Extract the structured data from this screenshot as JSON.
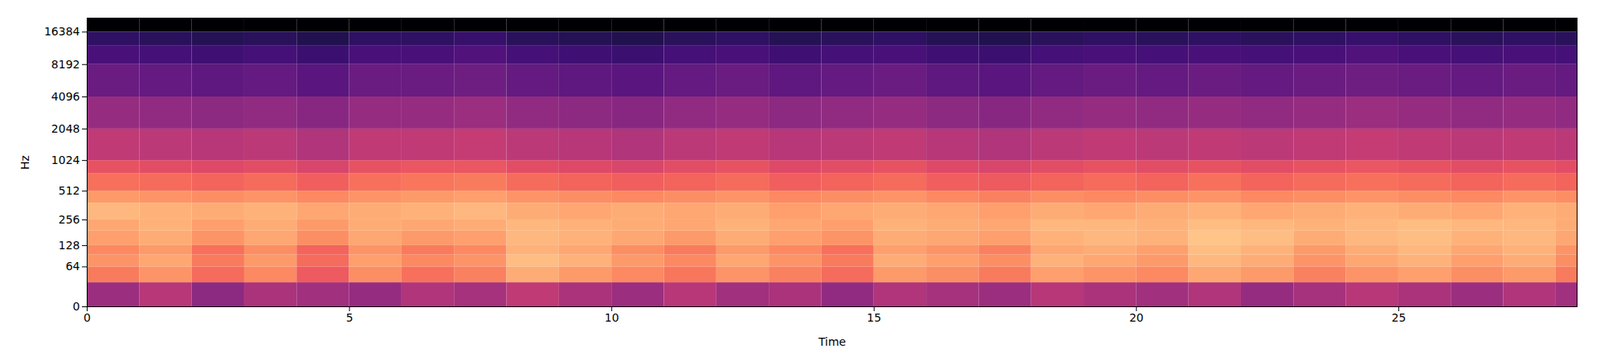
{
  "chart_data": {
    "type": "heatmap",
    "x_label": "Time",
    "y_label": "Hz",
    "xlim": [
      0,
      28.4
    ],
    "xticks": [
      0,
      5,
      10,
      15,
      20,
      25
    ],
    "ylim": [
      0,
      22050
    ],
    "yticks": [
      0,
      64,
      128,
      256,
      512,
      1024,
      2048,
      4096,
      8192,
      16384
    ],
    "log": "y",
    "color": "magma",
    "color_range": [
      -80,
      0
    ],
    "time_edges": [
      0,
      1,
      2,
      3,
      4,
      5,
      6,
      7,
      8,
      9,
      10,
      11,
      12,
      13,
      14,
      15,
      16,
      17,
      18,
      19,
      20,
      21,
      22,
      23,
      24,
      25,
      26,
      27,
      28,
      28.4
    ],
    "freq_edges": [
      0,
      32,
      64,
      96,
      128,
      192,
      256,
      384,
      512,
      768,
      1024,
      2048,
      4096,
      8192,
      12288,
      16384,
      22050
    ],
    "values": [
      [
        -45,
        -40,
        -48,
        -42,
        -44,
        -46,
        -41,
        -43,
        -38,
        -42,
        -45,
        -40,
        -44,
        -42,
        -47,
        -41,
        -43,
        -45,
        -40,
        -42,
        -44,
        -41,
        -46,
        -43,
        -40,
        -42,
        -45,
        -41,
        -44
      ],
      [
        -22,
        -18,
        -25,
        -20,
        -28,
        -19,
        -24,
        -21,
        -14,
        -17,
        -20,
        -23,
        -18,
        -21,
        -25,
        -17,
        -19,
        -22,
        -16,
        -18,
        -20,
        -15,
        -17,
        -21,
        -18,
        -16,
        -19,
        -17,
        -22
      ],
      [
        -18,
        -15,
        -22,
        -17,
        -25,
        -16,
        -20,
        -18,
        -11,
        -13,
        -17,
        -20,
        -15,
        -18,
        -22,
        -14,
        -16,
        -19,
        -13,
        -15,
        -17,
        -12,
        -14,
        -18,
        -15,
        -13,
        -16,
        -14,
        -19
      ],
      [
        -20,
        -17,
        -24,
        -19,
        -26,
        -18,
        -22,
        -20,
        -13,
        -15,
        -19,
        -22,
        -17,
        -20,
        -24,
        -16,
        -18,
        -21,
        -15,
        -14,
        -16,
        -11,
        -13,
        -17,
        -14,
        -12,
        -15,
        -13,
        -18
      ],
      [
        -16,
        -14,
        -18,
        -15,
        -19,
        -15,
        -17,
        -16,
        -12,
        -13,
        -15,
        -17,
        -14,
        -16,
        -18,
        -14,
        -15,
        -16,
        -13,
        -12,
        -13,
        -10,
        -11,
        -14,
        -12,
        -11,
        -13,
        -12,
        -15
      ],
      [
        -15,
        -13,
        -16,
        -14,
        -17,
        -14,
        -15,
        -14,
        -12,
        -13,
        -14,
        -15,
        -13,
        -15,
        -16,
        -13,
        -14,
        -15,
        -12,
        -12,
        -13,
        -11,
        -12,
        -13,
        -12,
        -11,
        -12,
        -12,
        -14
      ],
      [
        -12,
        -13,
        -14,
        -13,
        -15,
        -14,
        -13,
        -12,
        -14,
        -15,
        -14,
        -15,
        -14,
        -16,
        -15,
        -14,
        -15,
        -16,
        -14,
        -15,
        -14,
        -13,
        -15,
        -14,
        -13,
        -14,
        -15,
        -13,
        -14
      ],
      [
        -17,
        -18,
        -19,
        -18,
        -20,
        -18,
        -17,
        -16,
        -18,
        -19,
        -20,
        -19,
        -18,
        -20,
        -19,
        -18,
        -20,
        -21,
        -19,
        -20,
        -19,
        -18,
        -20,
        -19,
        -18,
        -19,
        -20,
        -18,
        -19
      ],
      [
        -24,
        -25,
        -26,
        -25,
        -27,
        -24,
        -23,
        -22,
        -25,
        -26,
        -27,
        -26,
        -25,
        -27,
        -26,
        -25,
        -27,
        -28,
        -26,
        -25,
        -26,
        -24,
        -26,
        -25,
        -24,
        -25,
        -26,
        -25,
        -26
      ],
      [
        -30,
        -31,
        -32,
        -31,
        -33,
        -30,
        -29,
        -29,
        -31,
        -32,
        -33,
        -31,
        -30,
        -32,
        -31,
        -30,
        -32,
        -33,
        -31,
        -30,
        -31,
        -30,
        -31,
        -30,
        -29,
        -30,
        -31,
        -30,
        -31
      ],
      [
        -38,
        -39,
        -40,
        -39,
        -41,
        -38,
        -38,
        -37,
        -39,
        -40,
        -41,
        -39,
        -38,
        -40,
        -39,
        -38,
        -40,
        -41,
        -39,
        -38,
        -39,
        -38,
        -39,
        -38,
        -37,
        -38,
        -39,
        -38,
        -39
      ],
      [
        -46,
        -47,
        -48,
        -47,
        -49,
        -46,
        -46,
        -45,
        -47,
        -48,
        -49,
        -47,
        -46,
        -48,
        -47,
        -46,
        -48,
        -49,
        -47,
        -46,
        -47,
        -46,
        -47,
        -46,
        -45,
        -46,
        -47,
        -46,
        -47
      ],
      [
        -55,
        -56,
        -57,
        -56,
        -58,
        -55,
        -55,
        -54,
        -56,
        -57,
        -58,
        -56,
        -55,
        -57,
        -56,
        -55,
        -57,
        -58,
        -56,
        -55,
        -56,
        -55,
        -56,
        -55,
        -54,
        -55,
        -56,
        -55,
        -56
      ],
      [
        -61,
        -62,
        -63,
        -62,
        -64,
        -61,
        -61,
        -60,
        -62,
        -63,
        -64,
        -62,
        -61,
        -63,
        -62,
        -61,
        -63,
        -64,
        -62,
        -61,
        -62,
        -61,
        -62,
        -61,
        -60,
        -61,
        -62,
        -61,
        -62
      ],
      [
        -66,
        -67,
        -68,
        -67,
        -69,
        -66,
        -66,
        -65,
        -67,
        -68,
        -69,
        -67,
        -66,
        -68,
        -67,
        -66,
        -68,
        -69,
        -67,
        -66,
        -67,
        -66,
        -67,
        -66,
        -65,
        -66,
        -67,
        -66,
        -67
      ],
      [
        -80,
        -80,
        -80,
        -80,
        -80,
        -80,
        -80,
        -80,
        -80,
        -80,
        -80,
        -80,
        -80,
        -80,
        -80,
        -80,
        -80,
        -80,
        -80,
        -80,
        -80,
        -80,
        -80,
        -80,
        -80,
        -80,
        -80,
        -80,
        -80
      ]
    ]
  }
}
